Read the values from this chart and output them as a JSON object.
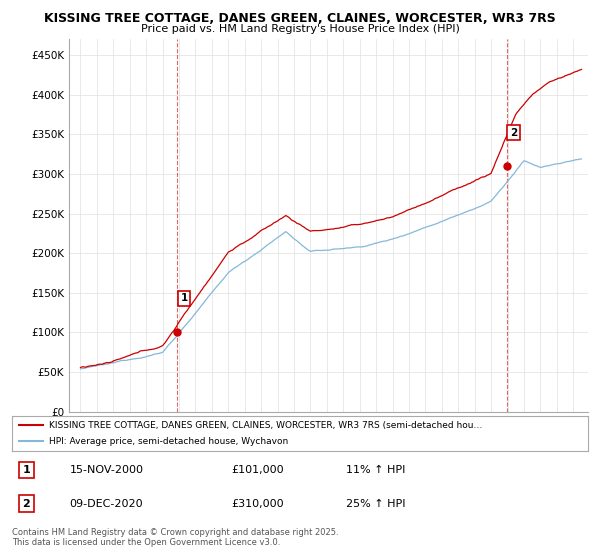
{
  "title1": "KISSING TREE COTTAGE, DANES GREEN, CLAINES, WORCESTER, WR3 7RS",
  "title2": "Price paid vs. HM Land Registry's House Price Index (HPI)",
  "ylim": [
    0,
    470000
  ],
  "yticks": [
    0,
    50000,
    100000,
    150000,
    200000,
    250000,
    300000,
    350000,
    400000,
    450000
  ],
  "ytick_labels": [
    "£0",
    "£50K",
    "£100K",
    "£150K",
    "£200K",
    "£250K",
    "£300K",
    "£350K",
    "£400K",
    "£450K"
  ],
  "hpi_color": "#85b8d8",
  "price_color": "#cc0000",
  "marker1_year": 2000.88,
  "marker1_value": 101000,
  "marker2_year": 2020.94,
  "marker2_value": 310000,
  "annotation1_label": "1",
  "annotation2_label": "2",
  "legend_line1": "KISSING TREE COTTAGE, DANES GREEN, CLAINES, WORCESTER, WR3 7RS (semi-detached hou…",
  "legend_line2": "HPI: Average price, semi-detached house, Wychavon",
  "table_row1": [
    "1",
    "15-NOV-2000",
    "£101,000",
    "11% ↑ HPI"
  ],
  "table_row2": [
    "2",
    "09-DEC-2020",
    "£310,000",
    "25% ↑ HPI"
  ],
  "footer": "Contains HM Land Registry data © Crown copyright and database right 2025.\nThis data is licensed under the Open Government Licence v3.0.",
  "bg_color": "#ffffff",
  "grid_color": "#e0e0e0"
}
